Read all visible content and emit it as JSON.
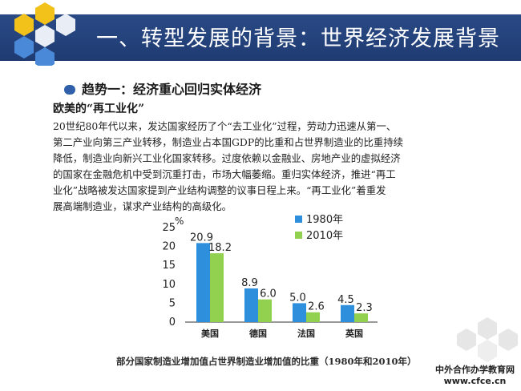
{
  "slide": {
    "title": "一、转型发展的背景：世界经济发展背景",
    "trend_heading": "趋势一：经济重心回归实体经济",
    "subheading": "欧美的“再工业化”",
    "paragraph_lines": [
      "20世纪80年代以来，发达国家经历了个“去工业化”过程，劳动力迅速从第一、",
      "第二产业向第三产业转移，制造业占本国GDP的比重和占世界制造业的比重持续",
      "降低，制造业向新兴工业化国家转移。过度依赖以金融业、房地产业的虚拟经济",
      "的国家在金融危机中受到沉重打击，市场大幅萎缩。重归实体经济，推进“再工",
      "业化”战略被发达国家提到产业结构调整的议事日程上来。“再工业化”着重发",
      "展高端制造业，谋求产业结构的高级化。"
    ],
    "caption": "部分国家制造业增加值占世界制造业增加值的比重（1980年和2010年）",
    "watermark_line1": "中外合作办学教育网",
    "watermark_line2": "www.cfce.cn"
  },
  "colors": {
    "title_bar": "#1f3b72",
    "series_1980": "#2e8fdc",
    "series_2010": "#92d050",
    "accent": "#2f5fa8"
  },
  "chart_data": {
    "type": "bar",
    "ylabel": "%",
    "ylim": [
      0,
      25
    ],
    "yticks": [
      0,
      5,
      10,
      15,
      20,
      25
    ],
    "categories": [
      "美国",
      "德国",
      "法国",
      "英国"
    ],
    "series": [
      {
        "name": "1980年",
        "values": [
          20.9,
          8.9,
          5.0,
          4.5
        ],
        "labels": [
          "20.9",
          "8.9",
          "5.0",
          "4.5"
        ]
      },
      {
        "name": "2010年",
        "values": [
          18.2,
          6.0,
          2.6,
          2.3
        ],
        "labels": [
          "18.2",
          "6.0",
          "2.6",
          "2.3"
        ]
      }
    ],
    "legend_position": "top-right",
    "grid": false
  }
}
